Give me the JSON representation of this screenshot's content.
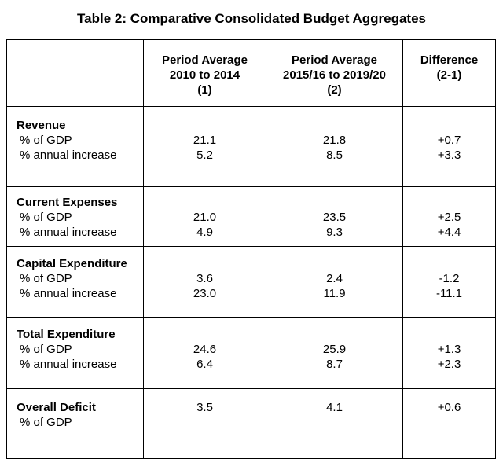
{
  "title": "Table 2: Comparative Consolidated Budget Aggregates",
  "table": {
    "columns": [
      {
        "label": "Period Average\n2010 to 2014\n(1)"
      },
      {
        "label": "Period Average\n2015/16 to 2019/20\n(2)"
      },
      {
        "label": "Difference\n(2-1)"
      }
    ],
    "groups": [
      {
        "label": "Revenue",
        "label_values": [
          "",
          "",
          ""
        ],
        "rows": [
          {
            "label": "% of GDP",
            "values": [
              "21.1",
              "21.8",
              "+0.7"
            ]
          },
          {
            "label": "% annual increase",
            "values": [
              "5.2",
              "8.5",
              "+3.3"
            ]
          }
        ]
      },
      {
        "label": "Current Expenses",
        "label_values": [
          "",
          "",
          ""
        ],
        "rows": [
          {
            "label": "% of GDP",
            "values": [
              "21.0",
              "23.5",
              "+2.5"
            ]
          },
          {
            "label": "% annual increase",
            "values": [
              "4.9",
              "9.3",
              "+4.4"
            ]
          }
        ]
      },
      {
        "label": "Capital Expenditure",
        "label_values": [
          "",
          "",
          ""
        ],
        "rows": [
          {
            "label": "% of GDP",
            "values": [
              "3.6",
              "2.4",
              "-1.2"
            ]
          },
          {
            "label": "% annual increase",
            "values": [
              "23.0",
              "11.9",
              "-11.1"
            ]
          }
        ]
      },
      {
        "label": "Total Expenditure",
        "label_values": [
          "",
          "",
          ""
        ],
        "rows": [
          {
            "label": "% of GDP",
            "values": [
              "24.6",
              "25.9",
              "+1.3"
            ]
          },
          {
            "label": "% annual increase",
            "values": [
              "6.4",
              "8.7",
              "+2.3"
            ]
          }
        ]
      },
      {
        "label": "Overall Deficit",
        "label_values": [
          "3.5",
          "4.1",
          "+0.6"
        ],
        "rows": [
          {
            "label": "% of GDP",
            "values": [
              "",
              "",
              ""
            ]
          }
        ]
      }
    ]
  }
}
